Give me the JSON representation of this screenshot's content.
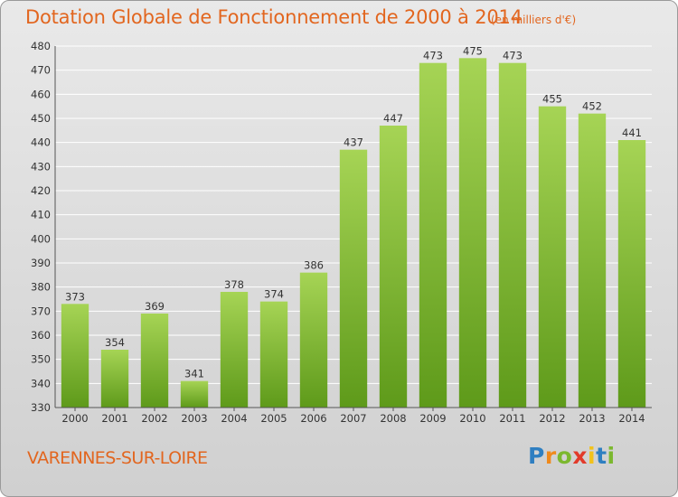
{
  "title": "Dotation Globale de Fonctionnement de 2000 à 2014",
  "unit_note": "(en milliers d'€)",
  "commune": "VARENNES-SUR-LOIRE",
  "logo": {
    "text": "Proxiti",
    "letter_colors": [
      "#2f7fc1",
      "#f08a1c",
      "#7cb82f",
      "#e23a2a",
      "#f2c21b",
      "#2f7fc1",
      "#7cb82f"
    ]
  },
  "colors": {
    "title": "#e2661f",
    "bar_light": "#a6d455",
    "bar_dark": "#5e9a1a",
    "grid": "#ffffff",
    "background_top": "#e9e9e9",
    "background_bottom": "#d0d0d0"
  },
  "chart_data": {
    "type": "bar",
    "title": "Dotation Globale de Fonctionnement de 2000 à 2014",
    "subtitle": "(en milliers d'€)",
    "xlabel": "",
    "ylabel": "",
    "categories": [
      "2000",
      "2001",
      "2002",
      "2003",
      "2004",
      "2005",
      "2006",
      "2007",
      "2008",
      "2009",
      "2010",
      "2011",
      "2012",
      "2013",
      "2014"
    ],
    "values": [
      373,
      354,
      369,
      341,
      378,
      374,
      386,
      437,
      447,
      473,
      475,
      473,
      455,
      452,
      441
    ],
    "ylim": [
      330,
      480
    ],
    "yticks": [
      330,
      340,
      350,
      360,
      370,
      380,
      390,
      400,
      410,
      420,
      430,
      440,
      450,
      460,
      470,
      480
    ],
    "grid": true,
    "data_labels": true,
    "legend": "none"
  }
}
